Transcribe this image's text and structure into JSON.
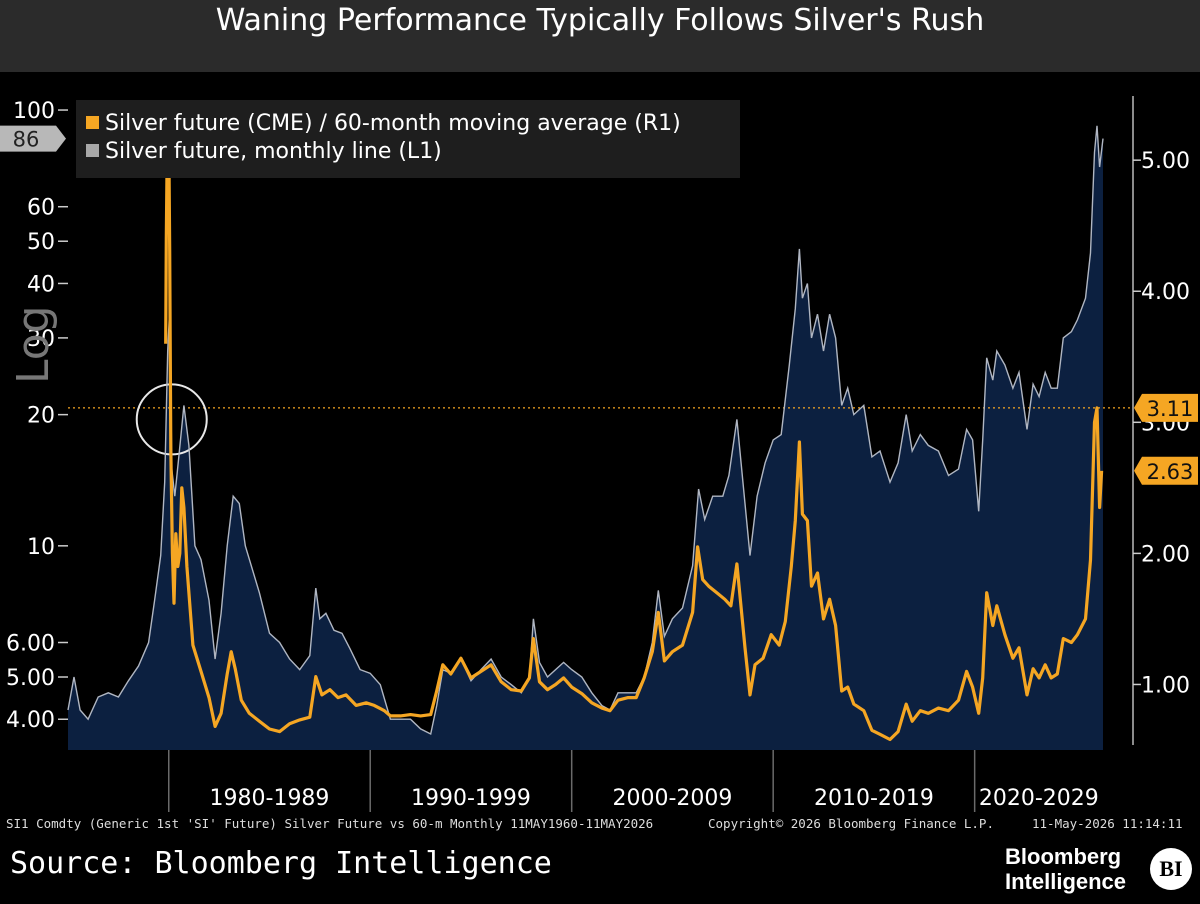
{
  "title": "Waning Performance Typically Follows Silver's Rush",
  "legend": {
    "r1_label": "Silver future (CME) / 60-month moving average (R1)",
    "l1_label": "Silver future, monthly line (L1)"
  },
  "log_label": "Log",
  "footer": {
    "left": "SI1 Comdty (Generic 1st 'SI' Future) Silver Future vs 60-m Monthly 11MAY1960-11MAY2026",
    "middle": "Copyright© 2026 Bloomberg Finance L.P.",
    "right": "11-May-2026 11:14:11"
  },
  "source": "Source: Bloomberg Intelligence",
  "brand": {
    "line1": "Bloomberg",
    "line2": "Intelligence",
    "badge": "BI"
  },
  "colors": {
    "background": "#000000",
    "area_fill": "#0c2040",
    "l1_line": "#b0b6c2",
    "r1_line": "#f5a623",
    "reference_line": "#f5a623",
    "marker_circle": "#e8e8e8"
  },
  "chart_data": {
    "type": "line",
    "x_range": [
      1975.0,
      2026.37
    ],
    "x_tick_labels": [
      "1980-1989",
      "1990-1999",
      "2000-2009",
      "2010-2019",
      "2020-2029"
    ],
    "left_axis": {
      "scale": "log",
      "range": [
        3.4,
        110
      ],
      "ticks": [
        100,
        60,
        50,
        40,
        30,
        20,
        10,
        6.0,
        5.0,
        4.0
      ],
      "tick_labels": [
        "100",
        "60",
        "50",
        "40",
        "30",
        "20",
        "10",
        "6.00",
        "5.00",
        "4.00"
      ],
      "last_value_label": "86"
    },
    "right_axis": {
      "scale": "linear",
      "range": [
        0.5,
        5.52
      ],
      "ticks": [
        5.0,
        4.0,
        3.0,
        2.0,
        1.0
      ],
      "tick_labels": [
        "5.00",
        "4.00",
        "3.00",
        "2.00",
        "1.00"
      ],
      "last_value_labels": [
        "3.11",
        "2.63"
      ]
    },
    "reference_line": {
      "axis": "right",
      "value": 3.11
    },
    "circle_marker": {
      "x": 1980.0,
      "y_left": 19.5
    },
    "series": [
      {
        "name": "Silver future, monthly line (L1)",
        "axis": "left",
        "area": true,
        "points": [
          [
            1975.0,
            4.2
          ],
          [
            1975.3,
            5.0
          ],
          [
            1975.6,
            4.2
          ],
          [
            1976.0,
            4.0
          ],
          [
            1976.5,
            4.5
          ],
          [
            1977.0,
            4.6
          ],
          [
            1977.5,
            4.5
          ],
          [
            1978.0,
            4.9
          ],
          [
            1978.5,
            5.3
          ],
          [
            1979.0,
            6.0
          ],
          [
            1979.3,
            7.5
          ],
          [
            1979.6,
            9.5
          ],
          [
            1979.8,
            14
          ],
          [
            1979.95,
            28
          ],
          [
            1980.05,
            35
          ],
          [
            1980.15,
            15
          ],
          [
            1980.3,
            13
          ],
          [
            1980.5,
            16
          ],
          [
            1980.75,
            21
          ],
          [
            1981.0,
            17
          ],
          [
            1981.3,
            10
          ],
          [
            1981.6,
            9.3
          ],
          [
            1982.0,
            7.5
          ],
          [
            1982.3,
            5.5
          ],
          [
            1982.6,
            7.0
          ],
          [
            1982.9,
            10
          ],
          [
            1983.2,
            13
          ],
          [
            1983.5,
            12.5
          ],
          [
            1983.8,
            10
          ],
          [
            1984.1,
            9.0
          ],
          [
            1984.5,
            7.8
          ],
          [
            1985.0,
            6.3
          ],
          [
            1985.5,
            6.0
          ],
          [
            1986.0,
            5.5
          ],
          [
            1986.5,
            5.2
          ],
          [
            1987.0,
            5.6
          ],
          [
            1987.3,
            8.0
          ],
          [
            1987.5,
            6.8
          ],
          [
            1987.8,
            7.0
          ],
          [
            1988.2,
            6.4
          ],
          [
            1988.6,
            6.3
          ],
          [
            1989.0,
            5.8
          ],
          [
            1989.5,
            5.2
          ],
          [
            1990.0,
            5.1
          ],
          [
            1990.5,
            4.8
          ],
          [
            1991.0,
            4.0
          ],
          [
            1991.5,
            4.0
          ],
          [
            1992.0,
            4.0
          ],
          [
            1992.5,
            3.8
          ],
          [
            1993.0,
            3.7
          ],
          [
            1993.3,
            4.3
          ],
          [
            1993.6,
            5.2
          ],
          [
            1994.0,
            5.1
          ],
          [
            1994.5,
            5.5
          ],
          [
            1995.0,
            4.9
          ],
          [
            1995.5,
            5.2
          ],
          [
            1996.0,
            5.5
          ],
          [
            1996.5,
            5.0
          ],
          [
            1997.0,
            4.8
          ],
          [
            1997.5,
            4.6
          ],
          [
            1997.9,
            5.0
          ],
          [
            1998.1,
            6.8
          ],
          [
            1998.4,
            5.4
          ],
          [
            1998.8,
            5.0
          ],
          [
            1999.2,
            5.2
          ],
          [
            1999.6,
            5.4
          ],
          [
            2000.0,
            5.2
          ],
          [
            2000.5,
            5.0
          ],
          [
            2001.0,
            4.6
          ],
          [
            2001.5,
            4.3
          ],
          [
            2001.9,
            4.2
          ],
          [
            2002.3,
            4.6
          ],
          [
            2002.8,
            4.6
          ],
          [
            2003.2,
            4.6
          ],
          [
            2003.6,
            5.0
          ],
          [
            2004.0,
            6.0
          ],
          [
            2004.3,
            7.9
          ],
          [
            2004.6,
            6.2
          ],
          [
            2005.0,
            6.8
          ],
          [
            2005.5,
            7.2
          ],
          [
            2006.0,
            9.0
          ],
          [
            2006.3,
            13.5
          ],
          [
            2006.6,
            11.5
          ],
          [
            2007.0,
            13.0
          ],
          [
            2007.5,
            13.0
          ],
          [
            2007.8,
            14.5
          ],
          [
            2008.2,
            19.5
          ],
          [
            2008.6,
            12.5
          ],
          [
            2008.85,
            9.5
          ],
          [
            2009.2,
            13.0
          ],
          [
            2009.6,
            15.5
          ],
          [
            2010.0,
            17.5
          ],
          [
            2010.4,
            18.0
          ],
          [
            2010.8,
            26.0
          ],
          [
            2011.1,
            35.0
          ],
          [
            2011.3,
            48.0
          ],
          [
            2011.45,
            37.0
          ],
          [
            2011.7,
            40.0
          ],
          [
            2011.9,
            30.0
          ],
          [
            2012.2,
            34.0
          ],
          [
            2012.5,
            28.0
          ],
          [
            2012.8,
            34.0
          ],
          [
            2013.1,
            30.0
          ],
          [
            2013.4,
            21.0
          ],
          [
            2013.7,
            23.0
          ],
          [
            2014.0,
            20.0
          ],
          [
            2014.5,
            21.0
          ],
          [
            2014.9,
            16.0
          ],
          [
            2015.3,
            16.5
          ],
          [
            2015.8,
            14.0
          ],
          [
            2016.2,
            15.5
          ],
          [
            2016.6,
            20.0
          ],
          [
            2016.9,
            16.5
          ],
          [
            2017.3,
            18.0
          ],
          [
            2017.7,
            17.0
          ],
          [
            2018.2,
            16.5
          ],
          [
            2018.7,
            14.5
          ],
          [
            2019.2,
            15.0
          ],
          [
            2019.6,
            18.5
          ],
          [
            2019.9,
            17.5
          ],
          [
            2020.2,
            12.0
          ],
          [
            2020.4,
            17.5
          ],
          [
            2020.6,
            27.0
          ],
          [
            2020.9,
            24.0
          ],
          [
            2021.1,
            28.0
          ],
          [
            2021.5,
            26.0
          ],
          [
            2021.9,
            23.0
          ],
          [
            2022.2,
            25.0
          ],
          [
            2022.6,
            18.5
          ],
          [
            2022.9,
            23.5
          ],
          [
            2023.2,
            22.0
          ],
          [
            2023.5,
            25.0
          ],
          [
            2023.8,
            23.0
          ],
          [
            2024.1,
            23.0
          ],
          [
            2024.4,
            30.0
          ],
          [
            2024.8,
            31.0
          ],
          [
            2025.1,
            33.0
          ],
          [
            2025.5,
            37.0
          ],
          [
            2025.75,
            47.0
          ],
          [
            2025.95,
            80.0
          ],
          [
            2026.07,
            92.0
          ],
          [
            2026.2,
            74.0
          ],
          [
            2026.37,
            86.0
          ]
        ]
      },
      {
        "name": "Silver future (CME) / 60-month moving average (R1)",
        "axis": "right",
        "points": [
          [
            1979.85,
            3.6
          ],
          [
            1979.88,
            4.4
          ],
          [
            1979.92,
            5.0
          ],
          [
            1979.95,
            5.1
          ],
          [
            1980.0,
            5.25
          ],
          [
            1980.05,
            4.3
          ],
          [
            1980.1,
            2.8
          ],
          [
            1980.18,
            2.0
          ],
          [
            1980.26,
            1.62
          ],
          [
            1980.35,
            2.15
          ],
          [
            1980.45,
            1.9
          ],
          [
            1980.55,
            2.0
          ],
          [
            1980.65,
            2.5
          ],
          [
            1980.75,
            2.35
          ],
          [
            1980.9,
            1.9
          ],
          [
            1981.2,
            1.3
          ],
          [
            1981.6,
            1.1
          ],
          [
            1982.0,
            0.9
          ],
          [
            1982.3,
            0.68
          ],
          [
            1982.6,
            0.78
          ],
          [
            1982.9,
            1.08
          ],
          [
            1983.1,
            1.25
          ],
          [
            1983.3,
            1.12
          ],
          [
            1983.6,
            0.88
          ],
          [
            1984.0,
            0.78
          ],
          [
            1984.5,
            0.72
          ],
          [
            1985.0,
            0.66
          ],
          [
            1985.5,
            0.64
          ],
          [
            1986.0,
            0.7
          ],
          [
            1986.5,
            0.73
          ],
          [
            1987.0,
            0.75
          ],
          [
            1987.3,
            1.06
          ],
          [
            1987.6,
            0.92
          ],
          [
            1988.0,
            0.96
          ],
          [
            1988.4,
            0.9
          ],
          [
            1988.8,
            0.92
          ],
          [
            1989.3,
            0.84
          ],
          [
            1989.8,
            0.86
          ],
          [
            1990.2,
            0.84
          ],
          [
            1990.7,
            0.8
          ],
          [
            1991.0,
            0.76
          ],
          [
            1991.5,
            0.76
          ],
          [
            1992.0,
            0.77
          ],
          [
            1992.5,
            0.76
          ],
          [
            1993.0,
            0.77
          ],
          [
            1993.3,
            0.95
          ],
          [
            1993.6,
            1.15
          ],
          [
            1994.0,
            1.08
          ],
          [
            1994.5,
            1.2
          ],
          [
            1995.0,
            1.05
          ],
          [
            1995.5,
            1.1
          ],
          [
            1996.0,
            1.15
          ],
          [
            1996.5,
            1.02
          ],
          [
            1997.0,
            0.96
          ],
          [
            1997.5,
            0.95
          ],
          [
            1997.9,
            1.05
          ],
          [
            1998.1,
            1.35
          ],
          [
            1998.4,
            1.02
          ],
          [
            1998.8,
            0.96
          ],
          [
            1999.2,
            1.0
          ],
          [
            1999.6,
            1.05
          ],
          [
            2000.0,
            0.98
          ],
          [
            2000.5,
            0.93
          ],
          [
            2001.0,
            0.86
          ],
          [
            2001.5,
            0.82
          ],
          [
            2001.9,
            0.8
          ],
          [
            2002.3,
            0.88
          ],
          [
            2002.8,
            0.9
          ],
          [
            2003.2,
            0.9
          ],
          [
            2003.6,
            1.05
          ],
          [
            2004.0,
            1.25
          ],
          [
            2004.3,
            1.55
          ],
          [
            2004.6,
            1.18
          ],
          [
            2005.0,
            1.25
          ],
          [
            2005.5,
            1.3
          ],
          [
            2006.0,
            1.55
          ],
          [
            2006.25,
            2.05
          ],
          [
            2006.5,
            1.8
          ],
          [
            2006.8,
            1.75
          ],
          [
            2007.2,
            1.7
          ],
          [
            2007.6,
            1.65
          ],
          [
            2007.9,
            1.6
          ],
          [
            2008.2,
            1.92
          ],
          [
            2008.6,
            1.28
          ],
          [
            2008.85,
            0.92
          ],
          [
            2009.1,
            1.15
          ],
          [
            2009.5,
            1.2
          ],
          [
            2009.9,
            1.38
          ],
          [
            2010.3,
            1.3
          ],
          [
            2010.6,
            1.48
          ],
          [
            2010.9,
            1.9
          ],
          [
            2011.1,
            2.25
          ],
          [
            2011.3,
            2.85
          ],
          [
            2011.45,
            2.3
          ],
          [
            2011.7,
            2.25
          ],
          [
            2011.9,
            1.75
          ],
          [
            2012.2,
            1.85
          ],
          [
            2012.5,
            1.5
          ],
          [
            2012.8,
            1.65
          ],
          [
            2013.1,
            1.45
          ],
          [
            2013.4,
            0.95
          ],
          [
            2013.7,
            0.98
          ],
          [
            2014.0,
            0.85
          ],
          [
            2014.5,
            0.8
          ],
          [
            2014.9,
            0.65
          ],
          [
            2015.3,
            0.62
          ],
          [
            2015.8,
            0.58
          ],
          [
            2016.2,
            0.64
          ],
          [
            2016.6,
            0.85
          ],
          [
            2016.9,
            0.72
          ],
          [
            2017.3,
            0.8
          ],
          [
            2017.7,
            0.78
          ],
          [
            2018.2,
            0.82
          ],
          [
            2018.7,
            0.8
          ],
          [
            2019.2,
            0.88
          ],
          [
            2019.6,
            1.1
          ],
          [
            2019.9,
            0.98
          ],
          [
            2020.2,
            0.78
          ],
          [
            2020.4,
            1.05
          ],
          [
            2020.6,
            1.7
          ],
          [
            2020.9,
            1.45
          ],
          [
            2021.1,
            1.6
          ],
          [
            2021.5,
            1.38
          ],
          [
            2021.9,
            1.2
          ],
          [
            2022.2,
            1.28
          ],
          [
            2022.6,
            0.92
          ],
          [
            2022.9,
            1.12
          ],
          [
            2023.2,
            1.05
          ],
          [
            2023.5,
            1.15
          ],
          [
            2023.8,
            1.05
          ],
          [
            2024.1,
            1.08
          ],
          [
            2024.4,
            1.35
          ],
          [
            2024.8,
            1.32
          ],
          [
            2025.1,
            1.38
          ],
          [
            2025.5,
            1.5
          ],
          [
            2025.75,
            1.95
          ],
          [
            2025.95,
            3.0
          ],
          [
            2026.07,
            3.11
          ],
          [
            2026.2,
            2.35
          ],
          [
            2026.3,
            2.63
          ]
        ]
      }
    ]
  }
}
